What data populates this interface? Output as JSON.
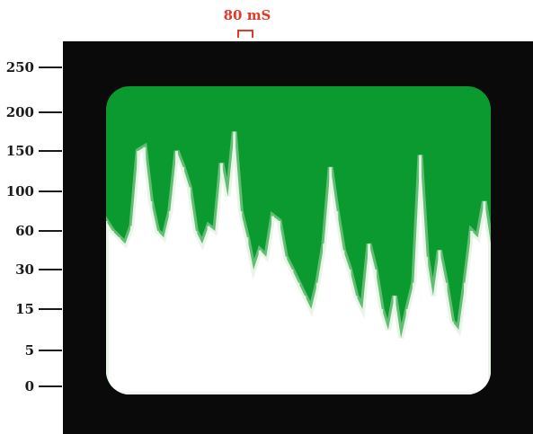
{
  "time_scale": {
    "label": "80 mS"
  },
  "colors": {
    "trace": "#ffffff",
    "background": "#0a9a2f",
    "bezel": "#0a0a0a",
    "marker": "#e03a2a"
  },
  "chart_data": {
    "type": "area",
    "title": "",
    "xlabel": "",
    "ylabel": "",
    "y_ticks": [
      "250",
      "200",
      "150",
      "100",
      "60",
      "30",
      "15",
      "5",
      "0"
    ],
    "y_scale": "nonlinear",
    "ylim": [
      0,
      250
    ],
    "x": [
      0,
      1,
      2,
      3,
      4,
      5,
      6,
      7,
      8,
      9,
      10,
      11,
      12,
      13,
      14,
      15,
      16,
      17,
      18,
      19,
      20,
      21,
      22,
      23,
      24,
      25,
      26,
      27,
      28,
      29,
      30,
      31,
      32,
      33,
      34,
      35,
      36,
      37,
      38,
      39,
      40,
      41,
      42,
      43,
      44,
      45,
      46,
      47,
      48,
      49,
      50,
      51,
      52,
      53,
      54,
      55,
      56,
      57,
      58,
      59,
      60
    ],
    "values": [
      70,
      60,
      55,
      50,
      65,
      150,
      155,
      90,
      60,
      55,
      80,
      150,
      130,
      105,
      60,
      50,
      65,
      60,
      135,
      95,
      175,
      80,
      55,
      30,
      45,
      40,
      75,
      70,
      40,
      30,
      25,
      20,
      15,
      25,
      50,
      130,
      80,
      45,
      30,
      20,
      15,
      50,
      30,
      15,
      10,
      20,
      8,
      15,
      25,
      145,
      40,
      20,
      45,
      25,
      12,
      10,
      25,
      60,
      55,
      90,
      50
    ]
  }
}
